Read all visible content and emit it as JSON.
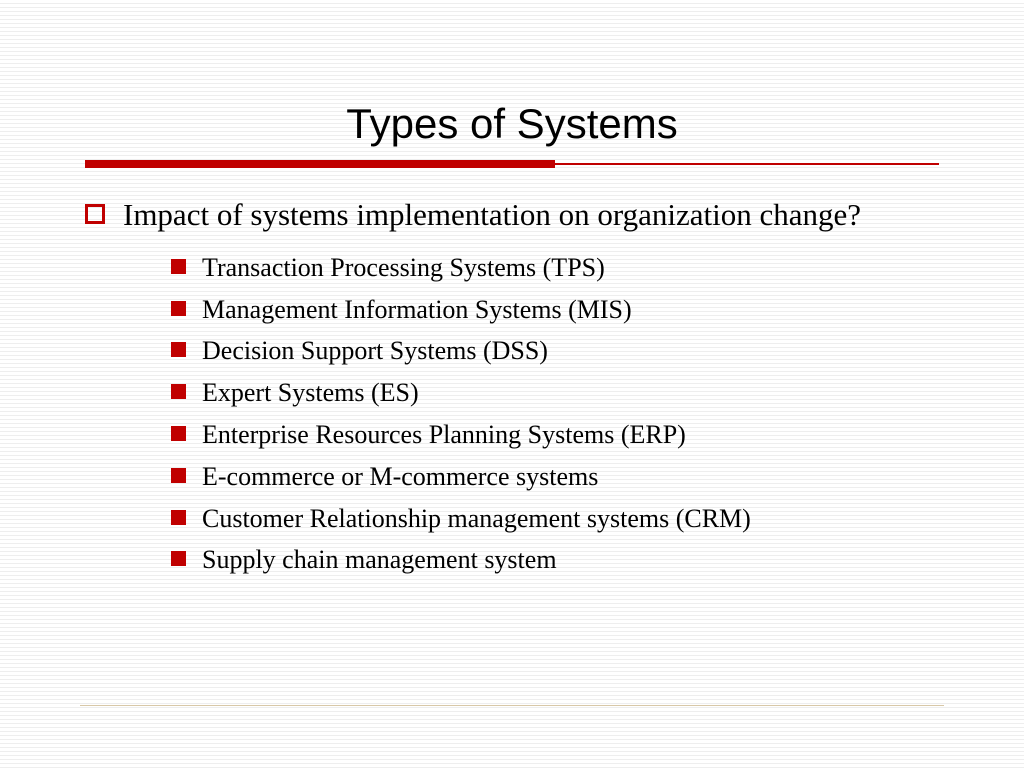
{
  "slide": {
    "title": "Types of Systems",
    "title_fontsize": 42,
    "title_fontfamily": "Verdana, Geneva, sans-serif",
    "title_color": "#000000",
    "accent_color": "#c00000",
    "underline_thick_width": 470,
    "underline_thick_height": 8,
    "underline_thin_height": 2,
    "background_color": "#ffffff",
    "line_color": "#eeeeee",
    "level1": {
      "text": "Impact of systems implementation on organization change?",
      "fontsize": 31,
      "bullet_color": "#c00000",
      "bullet_size": 20
    },
    "level2": {
      "fontsize": 26,
      "bullet_color": "#c00000",
      "bullet_size": 15,
      "items": [
        "Transaction Processing Systems (TPS)",
        "Management Information Systems (MIS)",
        "Decision Support Systems (DSS)",
        "Expert Systems (ES)",
        "Enterprise Resources Planning Systems (ERP)",
        "E-commerce or M-commerce systems",
        "Customer Relationship management systems (CRM)",
        "Supply chain management system"
      ]
    },
    "footer_line_color": "#d8c8a8",
    "footer_line_bottom": 62
  }
}
